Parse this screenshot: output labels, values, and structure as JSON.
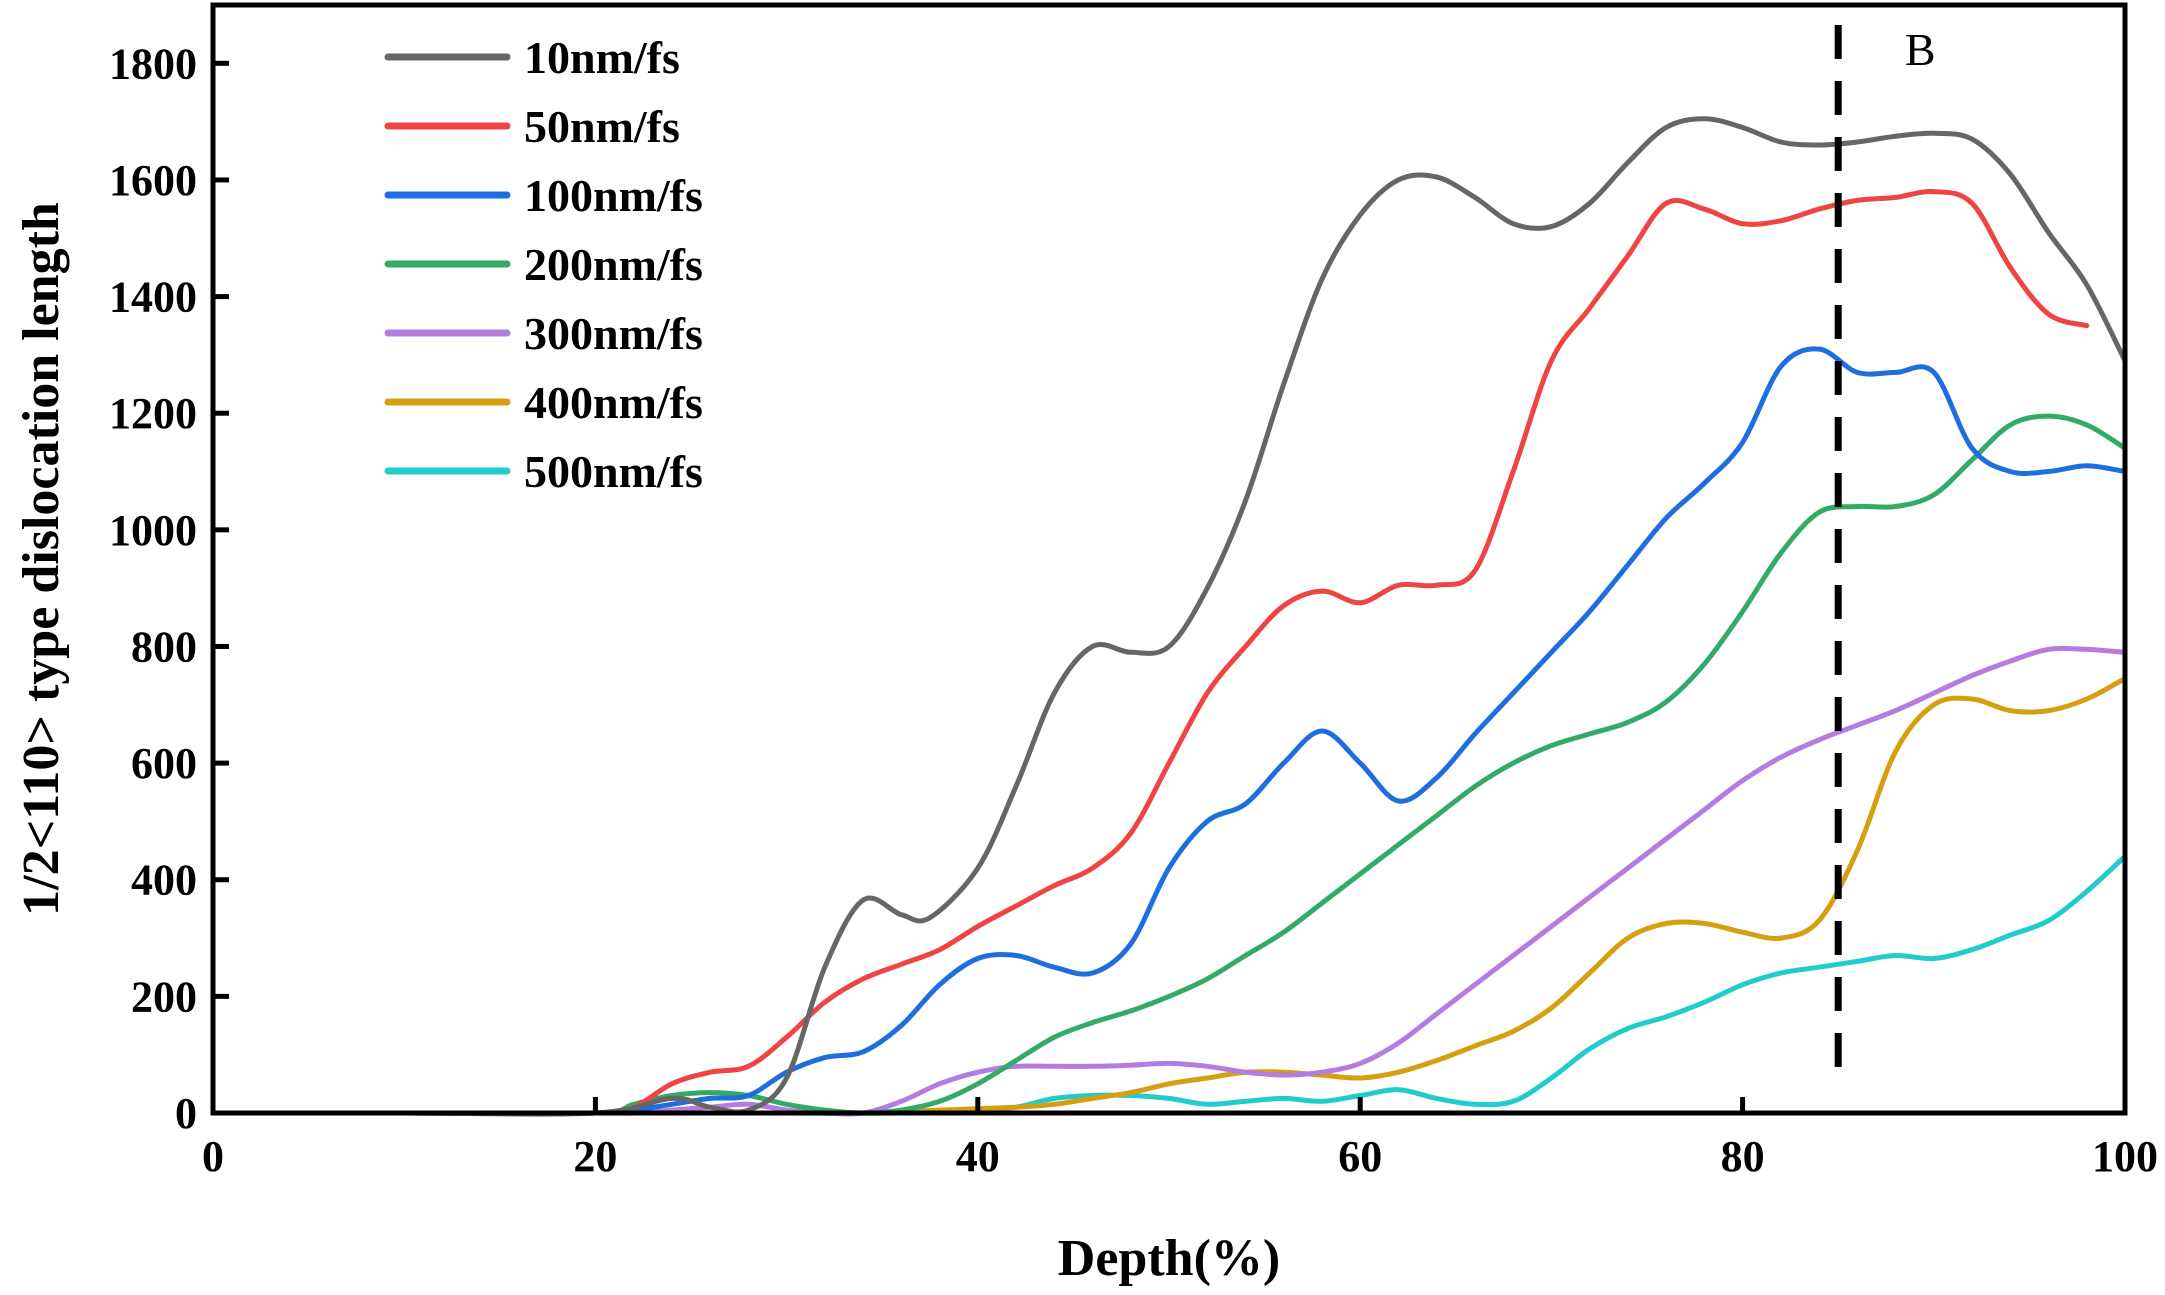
{
  "chart_data": {
    "type": "line",
    "xlabel": "Depth(%)",
    "ylabel": "1/2<110> type dislocation length",
    "xlim": [
      0,
      100
    ],
    "ylim": [
      0,
      1900
    ],
    "xticks": [
      0,
      20,
      40,
      60,
      80,
      100
    ],
    "yticks": [
      0,
      200,
      400,
      600,
      800,
      1000,
      1200,
      1400,
      1600,
      1800
    ],
    "xtick_labels": [
      "0",
      "20",
      "40",
      "60",
      "80",
      "100"
    ],
    "ytick_labels": [
      "0",
      "200",
      "400",
      "600",
      "800",
      "1000",
      "1200",
      "1400",
      "1600",
      "1800"
    ],
    "grid": false,
    "legend_position": "top-left",
    "annotation": {
      "label": "B",
      "x": 85,
      "style": "dashed vertical line"
    },
    "series": [
      {
        "name": "10nm/fs",
        "color": "#666666",
        "points": [
          [
            0,
            0
          ],
          [
            10,
            0
          ],
          [
            20,
            0
          ],
          [
            24,
            25
          ],
          [
            26,
            10
          ],
          [
            28,
            5
          ],
          [
            30,
            60
          ],
          [
            32,
            250
          ],
          [
            34,
            365
          ],
          [
            36,
            340
          ],
          [
            37.5,
            335
          ],
          [
            40,
            420
          ],
          [
            42,
            560
          ],
          [
            44,
            720
          ],
          [
            46,
            800
          ],
          [
            48,
            790
          ],
          [
            50,
            800
          ],
          [
            52,
            900
          ],
          [
            54,
            1050
          ],
          [
            56,
            1250
          ],
          [
            58,
            1430
          ],
          [
            60,
            1540
          ],
          [
            62,
            1600
          ],
          [
            64,
            1605
          ],
          [
            66,
            1570
          ],
          [
            68,
            1525
          ],
          [
            70,
            1520
          ],
          [
            72,
            1560
          ],
          [
            74,
            1630
          ],
          [
            76,
            1690
          ],
          [
            78,
            1705
          ],
          [
            80,
            1690
          ],
          [
            82,
            1665
          ],
          [
            84,
            1660
          ],
          [
            86,
            1665
          ],
          [
            88,
            1675
          ],
          [
            90,
            1680
          ],
          [
            92,
            1670
          ],
          [
            94,
            1610
          ],
          [
            96,
            1510
          ],
          [
            98,
            1420
          ],
          [
            100,
            1290
          ]
        ]
      },
      {
        "name": "50nm/fs",
        "color": "#ee4444",
        "points": [
          [
            0,
            0
          ],
          [
            10,
            0
          ],
          [
            20,
            0
          ],
          [
            22,
            10
          ],
          [
            24,
            50
          ],
          [
            26,
            70
          ],
          [
            28,
            80
          ],
          [
            30,
            130
          ],
          [
            32,
            190
          ],
          [
            34,
            230
          ],
          [
            36,
            255
          ],
          [
            38,
            280
          ],
          [
            40,
            320
          ],
          [
            42,
            355
          ],
          [
            44,
            390
          ],
          [
            46,
            420
          ],
          [
            48,
            480
          ],
          [
            50,
            600
          ],
          [
            52,
            720
          ],
          [
            54,
            800
          ],
          [
            56,
            870
          ],
          [
            58,
            895
          ],
          [
            60,
            875
          ],
          [
            62,
            905
          ],
          [
            64,
            905
          ],
          [
            66,
            930
          ],
          [
            68,
            1100
          ],
          [
            70,
            1290
          ],
          [
            72,
            1380
          ],
          [
            74,
            1470
          ],
          [
            76,
            1560
          ],
          [
            78,
            1550
          ],
          [
            80,
            1525
          ],
          [
            82,
            1530
          ],
          [
            84,
            1550
          ],
          [
            86,
            1565
          ],
          [
            88,
            1570
          ],
          [
            90,
            1580
          ],
          [
            92,
            1560
          ],
          [
            94,
            1450
          ],
          [
            96,
            1370
          ],
          [
            98,
            1350
          ]
        ]
      },
      {
        "name": "100nm/fs",
        "color": "#1f6ee0",
        "points": [
          [
            0,
            0
          ],
          [
            10,
            0
          ],
          [
            20,
            0
          ],
          [
            22,
            5
          ],
          [
            24,
            15
          ],
          [
            26,
            25
          ],
          [
            28,
            30
          ],
          [
            30,
            70
          ],
          [
            32,
            95
          ],
          [
            34,
            105
          ],
          [
            36,
            150
          ],
          [
            38,
            220
          ],
          [
            40,
            265
          ],
          [
            42,
            270
          ],
          [
            44,
            250
          ],
          [
            46,
            240
          ],
          [
            48,
            290
          ],
          [
            50,
            420
          ],
          [
            52,
            500
          ],
          [
            54,
            530
          ],
          [
            56,
            600
          ],
          [
            58,
            655
          ],
          [
            60,
            600
          ],
          [
            62,
            535
          ],
          [
            64,
            575
          ],
          [
            66,
            650
          ],
          [
            68,
            720
          ],
          [
            70,
            790
          ],
          [
            72,
            860
          ],
          [
            74,
            940
          ],
          [
            76,
            1020
          ],
          [
            78,
            1080
          ],
          [
            80,
            1150
          ],
          [
            82,
            1280
          ],
          [
            84,
            1310
          ],
          [
            86,
            1270
          ],
          [
            88,
            1270
          ],
          [
            90,
            1270
          ],
          [
            92,
            1140
          ],
          [
            94,
            1100
          ],
          [
            96,
            1100
          ],
          [
            98,
            1110
          ],
          [
            100,
            1100
          ]
        ]
      },
      {
        "name": "200nm/fs",
        "color": "#33aa66",
        "points": [
          [
            0,
            0
          ],
          [
            10,
            0
          ],
          [
            20,
            0
          ],
          [
            22,
            15
          ],
          [
            24,
            30
          ],
          [
            26,
            35
          ],
          [
            28,
            30
          ],
          [
            30,
            15
          ],
          [
            32,
            5
          ],
          [
            34,
            0
          ],
          [
            36,
            5
          ],
          [
            38,
            20
          ],
          [
            40,
            50
          ],
          [
            42,
            90
          ],
          [
            44,
            130
          ],
          [
            46,
            155
          ],
          [
            48,
            175
          ],
          [
            50,
            200
          ],
          [
            52,
            230
          ],
          [
            54,
            270
          ],
          [
            56,
            310
          ],
          [
            58,
            360
          ],
          [
            60,
            410
          ],
          [
            62,
            460
          ],
          [
            64,
            510
          ],
          [
            66,
            560
          ],
          [
            68,
            600
          ],
          [
            70,
            630
          ],
          [
            72,
            650
          ],
          [
            74,
            670
          ],
          [
            76,
            705
          ],
          [
            78,
            770
          ],
          [
            80,
            860
          ],
          [
            82,
            960
          ],
          [
            84,
            1030
          ],
          [
            86,
            1040
          ],
          [
            88,
            1040
          ],
          [
            90,
            1060
          ],
          [
            92,
            1120
          ],
          [
            94,
            1180
          ],
          [
            96,
            1195
          ],
          [
            98,
            1180
          ],
          [
            100,
            1140
          ]
        ]
      },
      {
        "name": "300nm/fs",
        "color": "#b57ce0",
        "points": [
          [
            0,
            0
          ],
          [
            10,
            0
          ],
          [
            20,
            0
          ],
          [
            22,
            0
          ],
          [
            24,
            5
          ],
          [
            26,
            10
          ],
          [
            28,
            15
          ],
          [
            30,
            5
          ],
          [
            32,
            0
          ],
          [
            34,
            0
          ],
          [
            36,
            20
          ],
          [
            38,
            50
          ],
          [
            40,
            70
          ],
          [
            42,
            80
          ],
          [
            44,
            80
          ],
          [
            46,
            80
          ],
          [
            48,
            82
          ],
          [
            50,
            85
          ],
          [
            52,
            80
          ],
          [
            54,
            70
          ],
          [
            56,
            65
          ],
          [
            58,
            70
          ],
          [
            60,
            85
          ],
          [
            62,
            120
          ],
          [
            64,
            170
          ],
          [
            66,
            220
          ],
          [
            68,
            270
          ],
          [
            70,
            320
          ],
          [
            72,
            370
          ],
          [
            74,
            420
          ],
          [
            76,
            470
          ],
          [
            78,
            520
          ],
          [
            80,
            570
          ],
          [
            82,
            610
          ],
          [
            84,
            640
          ],
          [
            86,
            665
          ],
          [
            88,
            690
          ],
          [
            90,
            720
          ],
          [
            92,
            750
          ],
          [
            94,
            775
          ],
          [
            96,
            795
          ],
          [
            98,
            795
          ],
          [
            100,
            790
          ]
        ]
      },
      {
        "name": "400nm/fs",
        "color": "#d4a010",
        "points": [
          [
            0,
            0
          ],
          [
            10,
            0
          ],
          [
            20,
            0
          ],
          [
            30,
            0
          ],
          [
            34,
            0
          ],
          [
            38,
            5
          ],
          [
            42,
            10
          ],
          [
            44,
            15
          ],
          [
            46,
            25
          ],
          [
            48,
            35
          ],
          [
            50,
            50
          ],
          [
            52,
            60
          ],
          [
            54,
            70
          ],
          [
            56,
            70
          ],
          [
            58,
            65
          ],
          [
            60,
            60
          ],
          [
            62,
            70
          ],
          [
            64,
            90
          ],
          [
            66,
            115
          ],
          [
            68,
            140
          ],
          [
            70,
            180
          ],
          [
            72,
            240
          ],
          [
            74,
            300
          ],
          [
            76,
            325
          ],
          [
            78,
            325
          ],
          [
            80,
            310
          ],
          [
            82,
            300
          ],
          [
            84,
            330
          ],
          [
            86,
            450
          ],
          [
            88,
            620
          ],
          [
            90,
            700
          ],
          [
            92,
            710
          ],
          [
            94,
            690
          ],
          [
            96,
            690
          ],
          [
            98,
            710
          ],
          [
            100,
            745
          ]
        ]
      },
      {
        "name": "500nm/fs",
        "color": "#22cccc",
        "points": [
          [
            0,
            0
          ],
          [
            10,
            0
          ],
          [
            20,
            0
          ],
          [
            30,
            0
          ],
          [
            36,
            0
          ],
          [
            40,
            5
          ],
          [
            42,
            10
          ],
          [
            44,
            25
          ],
          [
            46,
            30
          ],
          [
            48,
            30
          ],
          [
            50,
            25
          ],
          [
            52,
            15
          ],
          [
            54,
            20
          ],
          [
            56,
            25
          ],
          [
            58,
            20
          ],
          [
            60,
            30
          ],
          [
            62,
            40
          ],
          [
            64,
            25
          ],
          [
            66,
            15
          ],
          [
            68,
            20
          ],
          [
            70,
            60
          ],
          [
            72,
            110
          ],
          [
            74,
            145
          ],
          [
            76,
            165
          ],
          [
            78,
            190
          ],
          [
            80,
            220
          ],
          [
            82,
            240
          ],
          [
            84,
            250
          ],
          [
            86,
            260
          ],
          [
            88,
            270
          ],
          [
            90,
            265
          ],
          [
            92,
            280
          ],
          [
            94,
            305
          ],
          [
            96,
            330
          ],
          [
            98,
            380
          ],
          [
            100,
            440
          ]
        ]
      }
    ]
  }
}
